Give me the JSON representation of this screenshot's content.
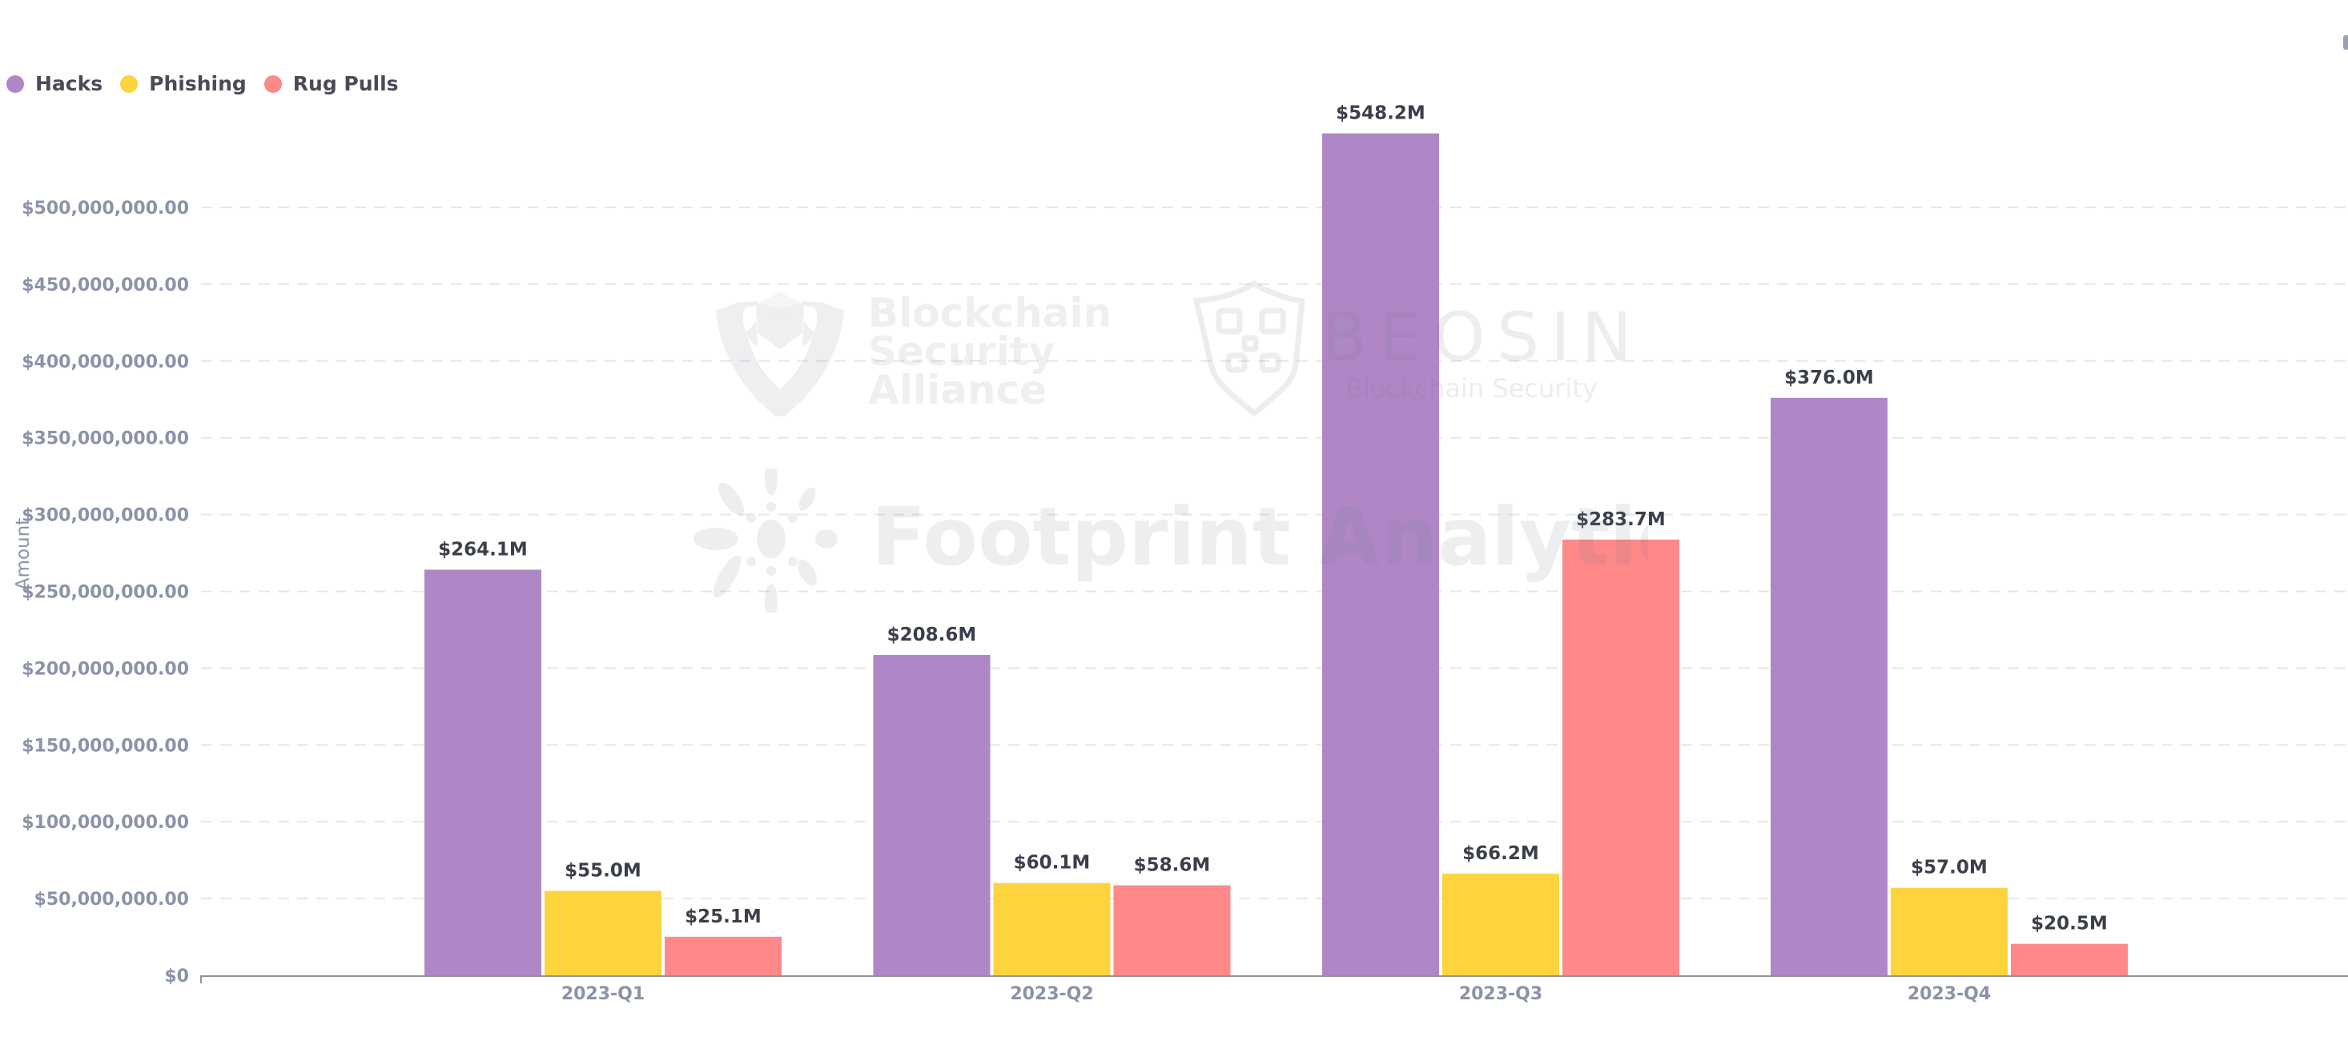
{
  "legend": {
    "items": [
      {
        "label": "Hacks",
        "color": "#AF87C7"
      },
      {
        "label": "Phishing",
        "color": "#FDD33E"
      },
      {
        "label": "Rug Pulls",
        "color": "#FF8889"
      }
    ]
  },
  "axes": {
    "y_label": "Amount",
    "y_ticks": [
      "$0",
      "$50,000,000.00",
      "$100,000,000.00",
      "$150,000,000.00",
      "$200,000,000.00",
      "$250,000,000.00",
      "$300,000,000.00",
      "$350,000,000.00",
      "$400,000,000.00",
      "$450,000,000.00",
      "$500,000,000.00"
    ],
    "x_ticks": [
      "2023-Q1",
      "2023-Q2",
      "2023-Q3",
      "2023-Q4"
    ]
  },
  "watermarks": {
    "bsa_line1": "Blockchain",
    "bsa_line2": "Security",
    "bsa_line3": "Alliance",
    "beosin_title": "BEOSIN",
    "beosin_subtitle": "Blockchain Security",
    "footprint": "Footprint Analytics"
  },
  "colors": {
    "hacks": "#AF87C7",
    "phishing": "#FDD33E",
    "rug_pulls": "#FF8889",
    "axis_text": "#8a93a8",
    "value_label": "#3b3f4c",
    "grid": "#e6e7eb"
  },
  "chart_data": {
    "type": "bar",
    "title": "",
    "xlabel": "",
    "ylabel": "Amount",
    "categories": [
      "2023-Q1",
      "2023-Q2",
      "2023-Q3",
      "2023-Q4"
    ],
    "series": [
      {
        "name": "Hacks",
        "color": "#AF87C7",
        "values": [
          264.1,
          208.6,
          548.2,
          376.0
        ],
        "labels": [
          "$264.1M",
          "$208.6M",
          "$548.2M",
          "$376.0M"
        ]
      },
      {
        "name": "Phishing",
        "color": "#FDD33E",
        "values": [
          55.0,
          60.1,
          66.2,
          57.0
        ],
        "labels": [
          "$55.0M",
          "$60.1M",
          "$66.2M",
          "$57.0M"
        ]
      },
      {
        "name": "Rug Pulls",
        "color": "#FF8889",
        "values": [
          25.1,
          58.6,
          283.7,
          20.5
        ],
        "labels": [
          "$25.1M",
          "$58.6M",
          "$283.7M",
          "$20.5M"
        ]
      }
    ],
    "units": "USD millions",
    "ylim": [
      0,
      500000000
    ],
    "y_tick_step": 50000000,
    "grid": true,
    "legend_position": "top-left"
  }
}
